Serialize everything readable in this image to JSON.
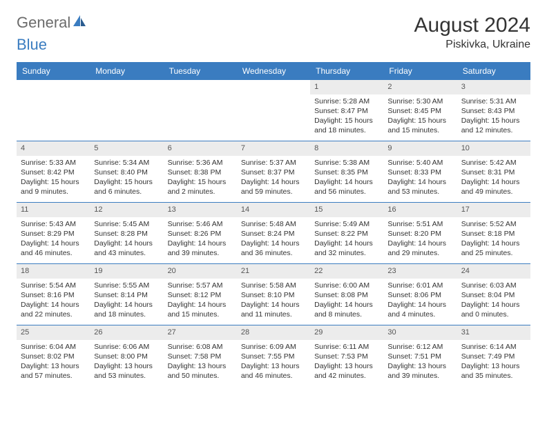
{
  "logo": {
    "part1": "General",
    "part2": "Blue"
  },
  "title": "August 2024",
  "location": "Piskivka, Ukraine",
  "colors": {
    "header_bg": "#3a7cc0",
    "daynum_bg": "#ececec",
    "text": "#333333",
    "logo_gray": "#6b6b6b",
    "logo_blue": "#3a7cc0"
  },
  "weekdays": [
    "Sunday",
    "Monday",
    "Tuesday",
    "Wednesday",
    "Thursday",
    "Friday",
    "Saturday"
  ],
  "weeks": [
    [
      null,
      null,
      null,
      null,
      {
        "n": "1",
        "sr": "Sunrise: 5:28 AM",
        "ss": "Sunset: 8:47 PM",
        "dl": "Daylight: 15 hours and 18 minutes."
      },
      {
        "n": "2",
        "sr": "Sunrise: 5:30 AM",
        "ss": "Sunset: 8:45 PM",
        "dl": "Daylight: 15 hours and 15 minutes."
      },
      {
        "n": "3",
        "sr": "Sunrise: 5:31 AM",
        "ss": "Sunset: 8:43 PM",
        "dl": "Daylight: 15 hours and 12 minutes."
      }
    ],
    [
      {
        "n": "4",
        "sr": "Sunrise: 5:33 AM",
        "ss": "Sunset: 8:42 PM",
        "dl": "Daylight: 15 hours and 9 minutes."
      },
      {
        "n": "5",
        "sr": "Sunrise: 5:34 AM",
        "ss": "Sunset: 8:40 PM",
        "dl": "Daylight: 15 hours and 6 minutes."
      },
      {
        "n": "6",
        "sr": "Sunrise: 5:36 AM",
        "ss": "Sunset: 8:38 PM",
        "dl": "Daylight: 15 hours and 2 minutes."
      },
      {
        "n": "7",
        "sr": "Sunrise: 5:37 AM",
        "ss": "Sunset: 8:37 PM",
        "dl": "Daylight: 14 hours and 59 minutes."
      },
      {
        "n": "8",
        "sr": "Sunrise: 5:38 AM",
        "ss": "Sunset: 8:35 PM",
        "dl": "Daylight: 14 hours and 56 minutes."
      },
      {
        "n": "9",
        "sr": "Sunrise: 5:40 AM",
        "ss": "Sunset: 8:33 PM",
        "dl": "Daylight: 14 hours and 53 minutes."
      },
      {
        "n": "10",
        "sr": "Sunrise: 5:42 AM",
        "ss": "Sunset: 8:31 PM",
        "dl": "Daylight: 14 hours and 49 minutes."
      }
    ],
    [
      {
        "n": "11",
        "sr": "Sunrise: 5:43 AM",
        "ss": "Sunset: 8:29 PM",
        "dl": "Daylight: 14 hours and 46 minutes."
      },
      {
        "n": "12",
        "sr": "Sunrise: 5:45 AM",
        "ss": "Sunset: 8:28 PM",
        "dl": "Daylight: 14 hours and 43 minutes."
      },
      {
        "n": "13",
        "sr": "Sunrise: 5:46 AM",
        "ss": "Sunset: 8:26 PM",
        "dl": "Daylight: 14 hours and 39 minutes."
      },
      {
        "n": "14",
        "sr": "Sunrise: 5:48 AM",
        "ss": "Sunset: 8:24 PM",
        "dl": "Daylight: 14 hours and 36 minutes."
      },
      {
        "n": "15",
        "sr": "Sunrise: 5:49 AM",
        "ss": "Sunset: 8:22 PM",
        "dl": "Daylight: 14 hours and 32 minutes."
      },
      {
        "n": "16",
        "sr": "Sunrise: 5:51 AM",
        "ss": "Sunset: 8:20 PM",
        "dl": "Daylight: 14 hours and 29 minutes."
      },
      {
        "n": "17",
        "sr": "Sunrise: 5:52 AM",
        "ss": "Sunset: 8:18 PM",
        "dl": "Daylight: 14 hours and 25 minutes."
      }
    ],
    [
      {
        "n": "18",
        "sr": "Sunrise: 5:54 AM",
        "ss": "Sunset: 8:16 PM",
        "dl": "Daylight: 14 hours and 22 minutes."
      },
      {
        "n": "19",
        "sr": "Sunrise: 5:55 AM",
        "ss": "Sunset: 8:14 PM",
        "dl": "Daylight: 14 hours and 18 minutes."
      },
      {
        "n": "20",
        "sr": "Sunrise: 5:57 AM",
        "ss": "Sunset: 8:12 PM",
        "dl": "Daylight: 14 hours and 15 minutes."
      },
      {
        "n": "21",
        "sr": "Sunrise: 5:58 AM",
        "ss": "Sunset: 8:10 PM",
        "dl": "Daylight: 14 hours and 11 minutes."
      },
      {
        "n": "22",
        "sr": "Sunrise: 6:00 AM",
        "ss": "Sunset: 8:08 PM",
        "dl": "Daylight: 14 hours and 8 minutes."
      },
      {
        "n": "23",
        "sr": "Sunrise: 6:01 AM",
        "ss": "Sunset: 8:06 PM",
        "dl": "Daylight: 14 hours and 4 minutes."
      },
      {
        "n": "24",
        "sr": "Sunrise: 6:03 AM",
        "ss": "Sunset: 8:04 PM",
        "dl": "Daylight: 14 hours and 0 minutes."
      }
    ],
    [
      {
        "n": "25",
        "sr": "Sunrise: 6:04 AM",
        "ss": "Sunset: 8:02 PM",
        "dl": "Daylight: 13 hours and 57 minutes."
      },
      {
        "n": "26",
        "sr": "Sunrise: 6:06 AM",
        "ss": "Sunset: 8:00 PM",
        "dl": "Daylight: 13 hours and 53 minutes."
      },
      {
        "n": "27",
        "sr": "Sunrise: 6:08 AM",
        "ss": "Sunset: 7:58 PM",
        "dl": "Daylight: 13 hours and 50 minutes."
      },
      {
        "n": "28",
        "sr": "Sunrise: 6:09 AM",
        "ss": "Sunset: 7:55 PM",
        "dl": "Daylight: 13 hours and 46 minutes."
      },
      {
        "n": "29",
        "sr": "Sunrise: 6:11 AM",
        "ss": "Sunset: 7:53 PM",
        "dl": "Daylight: 13 hours and 42 minutes."
      },
      {
        "n": "30",
        "sr": "Sunrise: 6:12 AM",
        "ss": "Sunset: 7:51 PM",
        "dl": "Daylight: 13 hours and 39 minutes."
      },
      {
        "n": "31",
        "sr": "Sunrise: 6:14 AM",
        "ss": "Sunset: 7:49 PM",
        "dl": "Daylight: 13 hours and 35 minutes."
      }
    ]
  ]
}
